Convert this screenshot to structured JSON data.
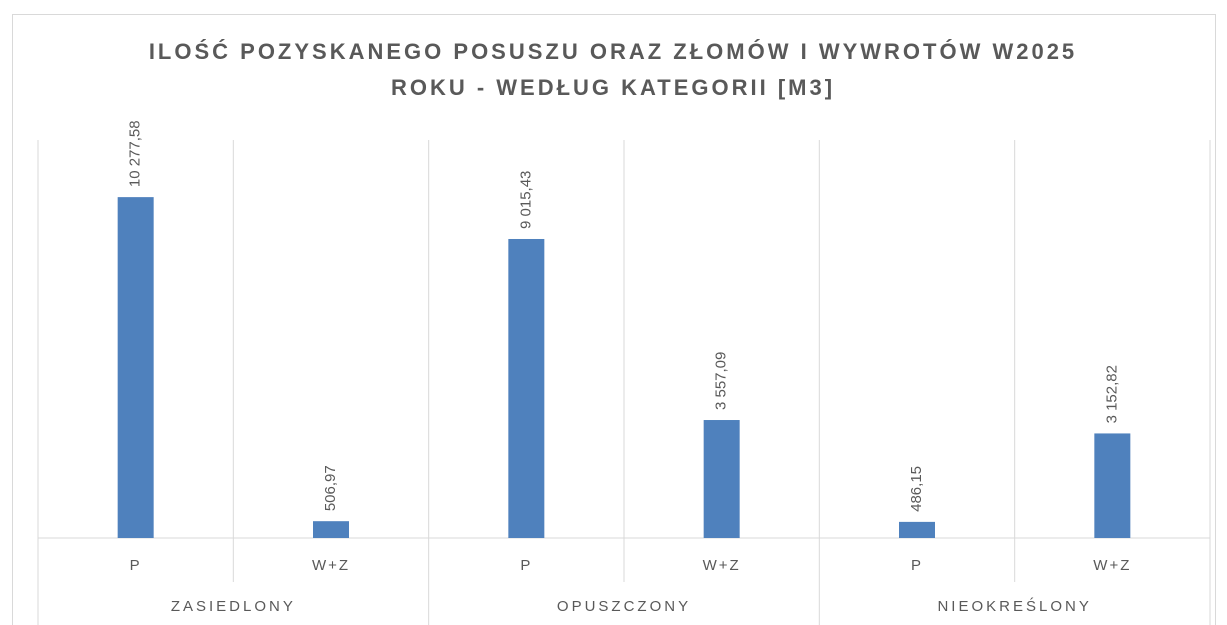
{
  "chart_data": {
    "type": "bar",
    "title": "ILOŚĆ POZYSKANEGO POSUSZU ORAZ ZŁOMÓW I WYWROTÓW W2025 ROKU - WEDŁUG KATEGORII [M3]",
    "categories": [
      "P",
      "W+Z",
      "P",
      "W+Z",
      "P",
      "W+Z"
    ],
    "groups": [
      "ZASIEDLONY",
      "OPUSZCZONY",
      "NIEOKREŚLONY"
    ],
    "values": [
      10277.58,
      506.97,
      9015.43,
      3557.09,
      486.15,
      3152.82
    ],
    "value_labels": [
      "10 277,58",
      "506,97",
      "9 015,43",
      "3 557,09",
      "486,15",
      "3 152,82"
    ],
    "color": "#4f81bd",
    "ylim": [
      0,
      12000
    ]
  }
}
